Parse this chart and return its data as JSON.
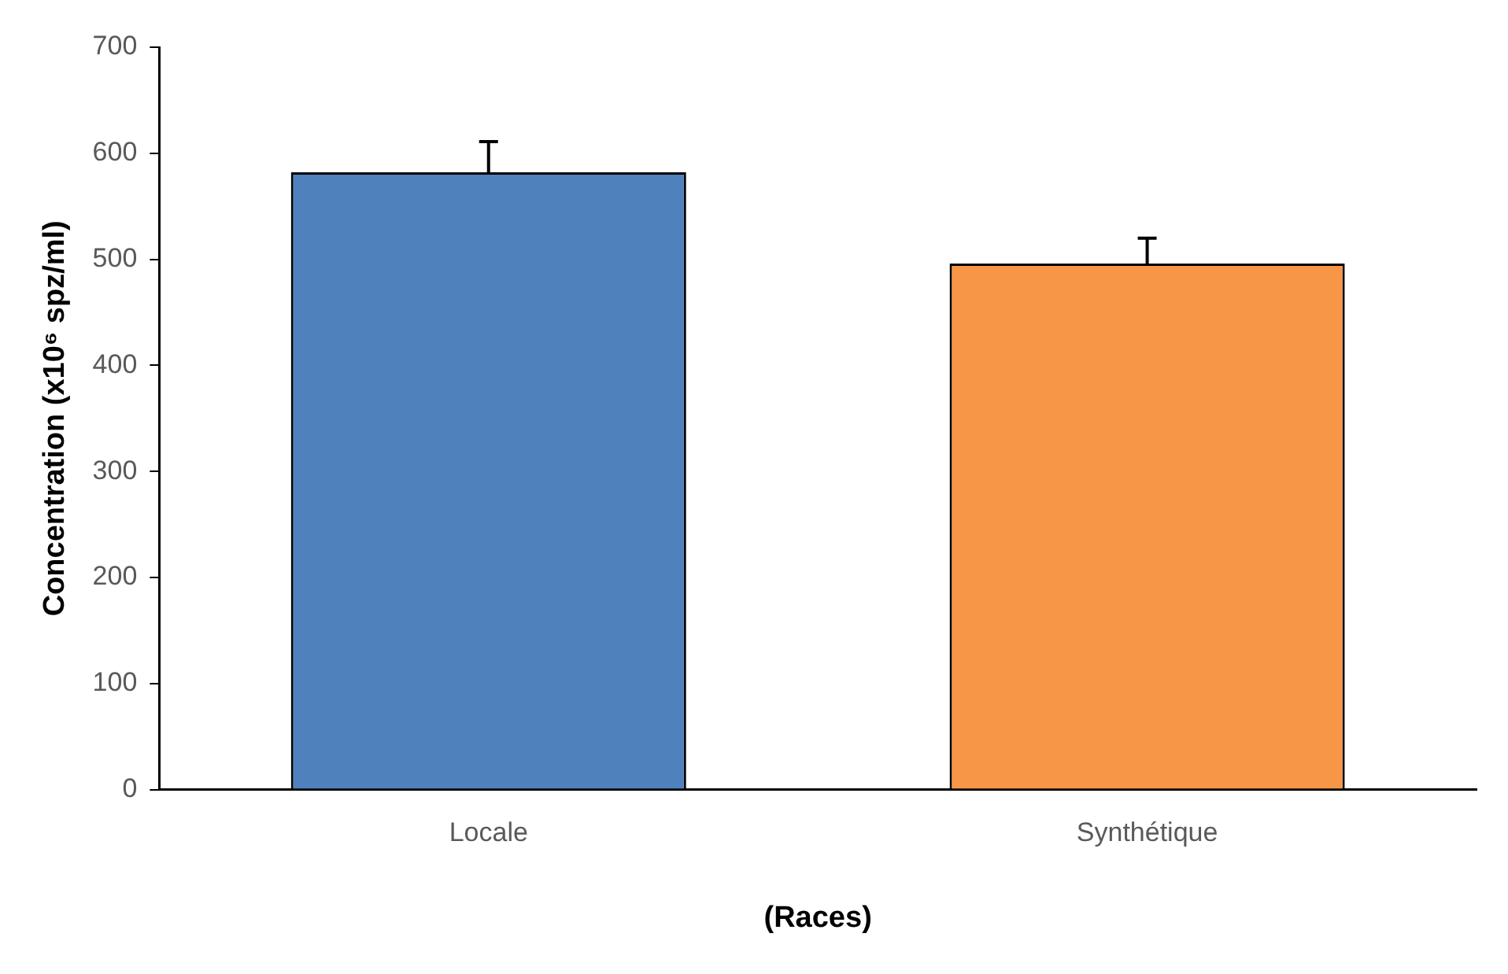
{
  "chart_data": {
    "type": "bar",
    "xlabel": "(Races)",
    "ylabel": "Concentration (x10⁶ spz/ml)",
    "categories": [
      "Locale",
      "Synthétique"
    ],
    "values": [
      582,
      496
    ],
    "colors": [
      "#4f81bd",
      "#f79646"
    ],
    "errors": [
      [
        582,
        611
      ],
      [
        496,
        520
      ]
    ],
    "ylim": [
      0,
      700
    ],
    "yticks": [
      0,
      100,
      200,
      300,
      400,
      500,
      600,
      700
    ],
    "grid": false,
    "legend": false
  }
}
